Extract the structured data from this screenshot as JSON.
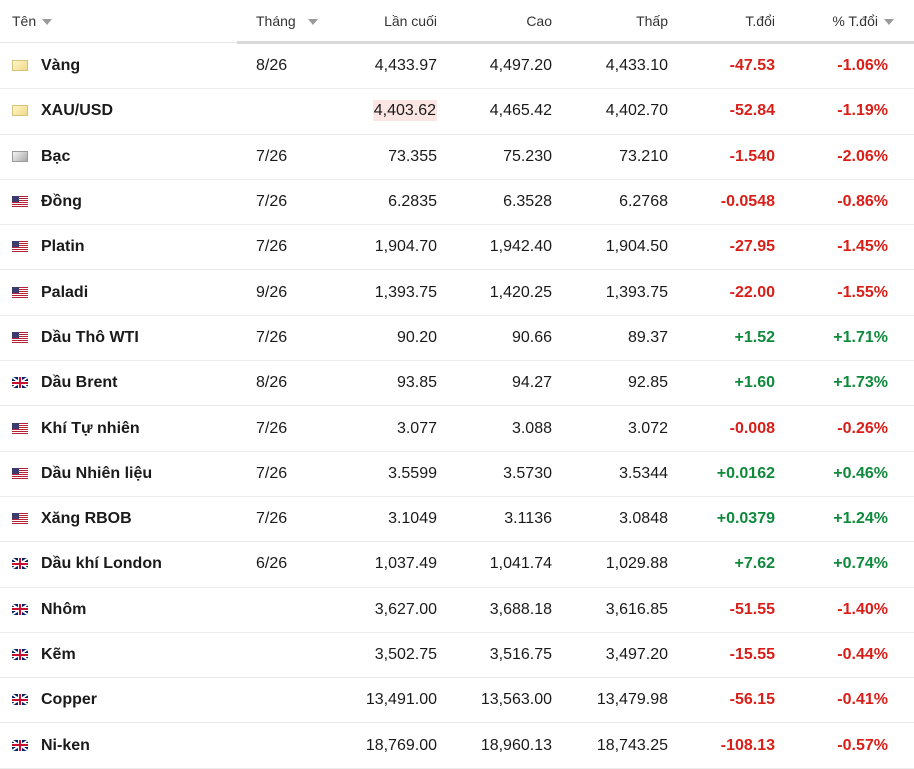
{
  "table": {
    "header": [
      "Tên",
      "Tháng",
      "Lần cuối",
      "Cao",
      "Thấp",
      "T.đổi",
      "% T.đổi"
    ],
    "rows": [
      [
        "Vàng",
        "8/26",
        "4,433.97",
        "4,497.20",
        "4,433.10",
        "-47.53",
        "-1.06%"
      ],
      [
        "XAU/USD",
        null,
        "4,403.62",
        "4,465.42",
        "4,402.70",
        "-52.84",
        "-1.19%"
      ],
      [
        "Bạc",
        "7/26",
        "73.355",
        "75.230",
        "73.210",
        "-1.540",
        "-2.06%"
      ],
      [
        "Đồng",
        "7/26",
        "6.2835",
        "6.3528",
        "6.2768",
        "-0.0548",
        "-0.86%"
      ],
      [
        "Platin",
        "7/26",
        "1,904.70",
        "1,942.40",
        "1,904.50",
        "-27.95",
        "-1.45%"
      ],
      [
        "Paladi",
        "9/26",
        "1,393.75",
        "1,420.25",
        "1,393.75",
        "-22.00",
        "-1.55%"
      ],
      [
        "Dầu Thô WTI",
        "7/26",
        "90.20",
        "90.66",
        "89.37",
        "+1.52",
        "+1.71%"
      ],
      [
        "Dầu Brent",
        "8/26",
        "93.85",
        "94.27",
        "92.85",
        "+1.60",
        "+1.73%"
      ],
      [
        "Khí Tự nhiên",
        "7/26",
        "3.077",
        "3.088",
        "3.072",
        "-0.008",
        "-0.26%"
      ],
      [
        "Dầu Nhiên liệu",
        "7/26",
        "3.5599",
        "3.5730",
        "3.5344",
        "+0.0162",
        "+0.46%"
      ],
      [
        "Xăng RBOB",
        "7/26",
        "3.1049",
        "3.1136",
        "3.0848",
        "+0.0379",
        "+1.24%"
      ],
      [
        "Dầu khí London",
        "6/26",
        "1,037.49",
        "1,041.74",
        "1,029.88",
        "+7.62",
        "+0.74%"
      ],
      [
        "Nhôm",
        null,
        "3,627.00",
        "3,688.18",
        "3,616.85",
        "-51.55",
        "-1.40%"
      ],
      [
        "Kẽm",
        null,
        "3,502.75",
        "3,516.75",
        "3,497.20",
        "-15.55",
        "-0.44%"
      ],
      [
        "Copper",
        null,
        "13,491.00",
        "13,563.00",
        "13,479.98",
        "-56.15",
        "-0.41%"
      ],
      [
        "Ni-ken",
        null,
        "18,769.00",
        "18,960.13",
        "18,743.25",
        "-108.13",
        "-0.57%"
      ]
    ]
  }
}
